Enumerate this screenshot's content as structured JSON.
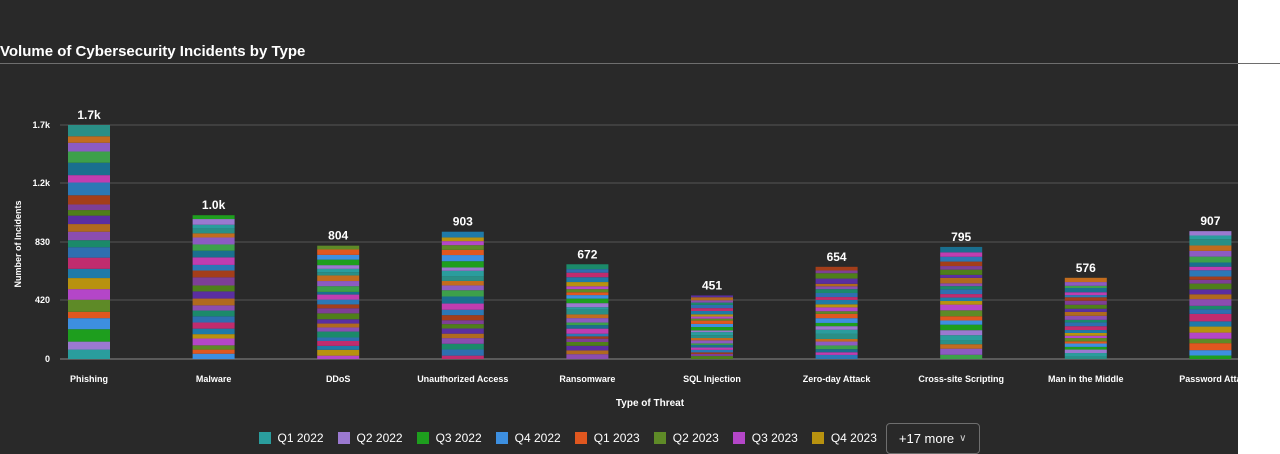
{
  "chart_data": {
    "type": "bar",
    "stacked": true,
    "title": "Volume of Cybersecurity Incidents by Type",
    "xlabel": "Type of Threat",
    "ylabel": "Number of Incidents",
    "ylim": [
      0,
      1660
    ],
    "yticks": [
      0,
      420,
      830,
      1200,
      1700
    ],
    "ytick_labels": [
      "0",
      "420",
      "830",
      "1.2k",
      "1.7k"
    ],
    "grid": true,
    "legend_position": "bottom",
    "categories": [
      "Phishing",
      "Malware",
      "DDoS",
      "Unauthorized Access",
      "Ransomware",
      "SQL Injection",
      "Zero-day Attack",
      "Cross-site Scripting",
      "Man in the Middle",
      "Password Attacks"
    ],
    "category_labels": [
      "Phishing",
      "Malware",
      "DDoS",
      "Unauthorized Access",
      "Ransomware",
      "SQL Injection",
      "Zero-day Attack",
      "Cross-site Scripting",
      "Man in the Middle",
      "Password Atta"
    ],
    "totals": [
      1660,
      1020,
      804,
      903,
      672,
      451,
      654,
      795,
      576,
      907
    ],
    "total_labels": [
      "1.7k",
      "1.0k",
      "804",
      "903",
      "672",
      "451",
      "654",
      "795",
      "576",
      "907"
    ],
    "series_colors": [
      "#2a9d9d",
      "#9b79d0",
      "#1e9e1e",
      "#3d8fe0",
      "#e0571f",
      "#5e8a27",
      "#b446c8",
      "#b8920f",
      "#1e7aa8",
      "#c02c6e",
      "#2e6fb0",
      "#1b8a6a",
      "#8b4db0",
      "#b06a1e",
      "#5a2ea0",
      "#4f7f1a",
      "#7d3f96",
      "#a33e1a",
      "#2b78b5",
      "#c03db0",
      "#1a6f8f",
      "#3da04a",
      "#8c5bc2",
      "#c26c1e",
      "#2a8f86"
    ]
  },
  "legend": {
    "items": [
      {
        "label": "Q1 2022",
        "color": "#2a9d9d"
      },
      {
        "label": "Q2 2022",
        "color": "#9b79d0"
      },
      {
        "label": "Q3 2022",
        "color": "#1e9e1e"
      },
      {
        "label": "Q4 2022",
        "color": "#3d8fe0"
      },
      {
        "label": "Q1 2023",
        "color": "#e0571f"
      },
      {
        "label": "Q2 2023",
        "color": "#5e8a27"
      },
      {
        "label": "Q3 2023",
        "color": "#b446c8"
      },
      {
        "label": "Q4 2023",
        "color": "#b8920f"
      }
    ],
    "more_label": "+17 more"
  }
}
